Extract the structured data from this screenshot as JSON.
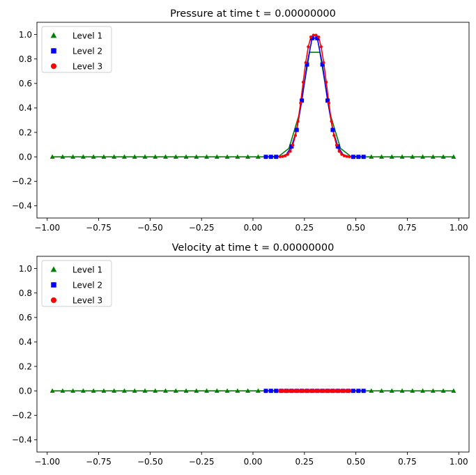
{
  "chart_data": [
    {
      "type": "line",
      "title": "Pressure at time t =      0.00000000",
      "xlim": [
        -1.05,
        1.05
      ],
      "ylim": [
        -0.5,
        1.1
      ],
      "xticks": [
        -1.0,
        -0.75,
        -0.5,
        -0.25,
        0.0,
        0.25,
        0.5,
        0.75,
        1.0
      ],
      "xtick_labels": [
        "−1.00",
        "−0.75",
        "−0.50",
        "−0.25",
        "0.00",
        "0.25",
        "0.50",
        "0.75",
        "1.00"
      ],
      "yticks": [
        -0.4,
        -0.2,
        0.0,
        0.2,
        0.4,
        0.6,
        0.8,
        1.0
      ],
      "ytick_labels": [
        "−0.4",
        "−0.2",
        "0.0",
        "0.2",
        "0.4",
        "0.6",
        "0.8",
        "1.0"
      ],
      "grid": false,
      "legend_position": "upper-left",
      "series": [
        {
          "name": "Level 1",
          "color": "#008000",
          "marker": "triangle",
          "x": [
            -0.975,
            -0.925,
            -0.875,
            -0.825,
            -0.775,
            -0.725,
            -0.675,
            -0.625,
            -0.575,
            -0.525,
            -0.475,
            -0.425,
            -0.375,
            -0.325,
            -0.275,
            -0.225,
            -0.175,
            -0.125,
            -0.075,
            -0.025,
            0.025,
            0.075,
            0.125,
            0.175,
            0.225,
            0.275,
            0.325,
            0.375,
            0.425,
            0.475,
            0.525,
            0.575,
            0.625,
            0.675,
            0.725,
            0.775,
            0.825,
            0.875,
            0.925,
            0.975
          ],
          "y": [
            0,
            0,
            0,
            0,
            0,
            0,
            0,
            0,
            0,
            0,
            0,
            0,
            0,
            0,
            0,
            0,
            0,
            0,
            0,
            0,
            0,
            0,
            0.004,
            0.07,
            0.35,
            0.855,
            0.855,
            0.35,
            0.07,
            0.004,
            0,
            0,
            0,
            0,
            0,
            0,
            0,
            0,
            0,
            0
          ],
          "marker_x": [
            -0.975,
            -0.925,
            -0.875,
            -0.825,
            -0.775,
            -0.725,
            -0.675,
            -0.625,
            -0.575,
            -0.525,
            -0.475,
            -0.425,
            -0.375,
            -0.325,
            -0.275,
            -0.225,
            -0.175,
            -0.125,
            -0.075,
            -0.025,
            0.025,
            0.575,
            0.625,
            0.675,
            0.725,
            0.775,
            0.825,
            0.875,
            0.925,
            0.975
          ],
          "marker_y": [
            0,
            0,
            0,
            0,
            0,
            0,
            0,
            0,
            0,
            0,
            0,
            0,
            0,
            0,
            0,
            0,
            0,
            0,
            0,
            0,
            0,
            0,
            0,
            0,
            0,
            0,
            0,
            0,
            0,
            0
          ]
        },
        {
          "name": "Level 2",
          "color": "#0000ff",
          "marker": "square",
          "x": [
            0.0625,
            0.0875,
            0.1125,
            0.1375,
            0.1625,
            0.1875,
            0.2125,
            0.2375,
            0.2625,
            0.2875,
            0.3125,
            0.3375,
            0.3625,
            0.3875,
            0.4125,
            0.4375,
            0.4625,
            0.4875,
            0.5125,
            0.5375
          ],
          "y": [
            0,
            0,
            0,
            0.003,
            0.02,
            0.085,
            0.22,
            0.46,
            0.755,
            0.97,
            0.97,
            0.755,
            0.46,
            0.22,
            0.085,
            0.02,
            0.003,
            0,
            0,
            0
          ],
          "marker_x": [
            0.0625,
            0.0875,
            0.1125,
            0.1875,
            0.2125,
            0.2375,
            0.2625,
            0.2875,
            0.3125,
            0.3375,
            0.3625,
            0.3875,
            0.4125,
            0.4875,
            0.5125,
            0.5375
          ],
          "marker_y": [
            0,
            0,
            0,
            0.085,
            0.22,
            0.46,
            0.755,
            0.97,
            0.97,
            0.755,
            0.46,
            0.22,
            0.085,
            0,
            0,
            0
          ]
        },
        {
          "name": "Level 3",
          "color": "#ff0000",
          "marker": "circle",
          "x": [
            0.13125,
            0.14375,
            0.15625,
            0.16875,
            0.18125,
            0.19375,
            0.20625,
            0.21875,
            0.23125,
            0.24375,
            0.25625,
            0.26875,
            0.28125,
            0.29375,
            0.30625,
            0.31875,
            0.33125,
            0.34375,
            0.35625,
            0.36875,
            0.38125,
            0.39375,
            0.40625,
            0.41875,
            0.43125,
            0.44375,
            0.45625,
            0.46875
          ],
          "y": [
            0.001,
            0.003,
            0.008,
            0.02,
            0.045,
            0.095,
            0.175,
            0.29,
            0.44,
            0.61,
            0.77,
            0.9,
            0.98,
            0.995,
            0.995,
            0.98,
            0.9,
            0.77,
            0.61,
            0.44,
            0.29,
            0.175,
            0.095,
            0.045,
            0.02,
            0.008,
            0.003,
            0.001
          ]
        }
      ]
    },
    {
      "type": "line",
      "title": "Velocity at time t =      0.00000000",
      "xlim": [
        -1.05,
        1.05
      ],
      "ylim": [
        -0.5,
        1.1
      ],
      "xticks": [
        -1.0,
        -0.75,
        -0.5,
        -0.25,
        0.0,
        0.25,
        0.5,
        0.75,
        1.0
      ],
      "xtick_labels": [
        "−1.00",
        "−0.75",
        "−0.50",
        "−0.25",
        "0.00",
        "0.25",
        "0.50",
        "0.75",
        "1.00"
      ],
      "yticks": [
        -0.4,
        -0.2,
        0.0,
        0.2,
        0.4,
        0.6,
        0.8,
        1.0
      ],
      "ytick_labels": [
        "−0.4",
        "−0.2",
        "0.0",
        "0.2",
        "0.4",
        "0.6",
        "0.8",
        "1.0"
      ],
      "grid": false,
      "legend_position": "upper-left",
      "series": [
        {
          "name": "Level 1",
          "color": "#008000",
          "marker": "triangle",
          "x": [
            -0.975,
            -0.925,
            -0.875,
            -0.825,
            -0.775,
            -0.725,
            -0.675,
            -0.625,
            -0.575,
            -0.525,
            -0.475,
            -0.425,
            -0.375,
            -0.325,
            -0.275,
            -0.225,
            -0.175,
            -0.125,
            -0.075,
            -0.025,
            0.025,
            0.075,
            0.125,
            0.175,
            0.225,
            0.275,
            0.325,
            0.375,
            0.425,
            0.475,
            0.525,
            0.575,
            0.625,
            0.675,
            0.725,
            0.775,
            0.825,
            0.875,
            0.925,
            0.975
          ],
          "y": [
            0,
            0,
            0,
            0,
            0,
            0,
            0,
            0,
            0,
            0,
            0,
            0,
            0,
            0,
            0,
            0,
            0,
            0,
            0,
            0,
            0,
            0,
            0,
            0,
            0,
            0,
            0,
            0,
            0,
            0,
            0,
            0,
            0,
            0,
            0,
            0,
            0,
            0,
            0,
            0
          ],
          "marker_x": [
            -0.975,
            -0.925,
            -0.875,
            -0.825,
            -0.775,
            -0.725,
            -0.675,
            -0.625,
            -0.575,
            -0.525,
            -0.475,
            -0.425,
            -0.375,
            -0.325,
            -0.275,
            -0.225,
            -0.175,
            -0.125,
            -0.075,
            -0.025,
            0.025,
            0.575,
            0.625,
            0.675,
            0.725,
            0.775,
            0.825,
            0.875,
            0.925,
            0.975
          ],
          "marker_y": [
            0,
            0,
            0,
            0,
            0,
            0,
            0,
            0,
            0,
            0,
            0,
            0,
            0,
            0,
            0,
            0,
            0,
            0,
            0,
            0,
            0,
            0,
            0,
            0,
            0,
            0,
            0,
            0,
            0,
            0
          ]
        },
        {
          "name": "Level 2",
          "color": "#0000ff",
          "marker": "square",
          "x": [
            0.0625,
            0.0875,
            0.1125,
            0.1375,
            0.1625,
            0.1875,
            0.2125,
            0.2375,
            0.2625,
            0.2875,
            0.3125,
            0.3375,
            0.3625,
            0.3875,
            0.4125,
            0.4375,
            0.4625,
            0.4875,
            0.5125,
            0.5375
          ],
          "y": [
            0,
            0,
            0,
            0,
            0,
            0,
            0,
            0,
            0,
            0,
            0,
            0,
            0,
            0,
            0,
            0,
            0,
            0,
            0,
            0
          ],
          "marker_x": [
            0.0625,
            0.0875,
            0.1125,
            0.1375,
            0.1625,
            0.1875,
            0.2125,
            0.2375,
            0.2625,
            0.2875,
            0.3125,
            0.3375,
            0.3625,
            0.3875,
            0.4125,
            0.4375,
            0.4625,
            0.4875,
            0.5125,
            0.5375
          ],
          "marker_y": [
            0,
            0,
            0,
            0,
            0,
            0,
            0,
            0,
            0,
            0,
            0,
            0,
            0,
            0,
            0,
            0,
            0,
            0,
            0,
            0
          ]
        },
        {
          "name": "Level 3",
          "color": "#ff0000",
          "marker": "circle",
          "x": [
            0.13125,
            0.14375,
            0.15625,
            0.16875,
            0.18125,
            0.19375,
            0.20625,
            0.21875,
            0.23125,
            0.24375,
            0.25625,
            0.26875,
            0.28125,
            0.29375,
            0.30625,
            0.31875,
            0.33125,
            0.34375,
            0.35625,
            0.36875,
            0.38125,
            0.39375,
            0.40625,
            0.41875,
            0.43125,
            0.44375,
            0.45625,
            0.46875
          ],
          "y": [
            0,
            0,
            0,
            0,
            0,
            0,
            0,
            0,
            0,
            0,
            0,
            0,
            0,
            0,
            0,
            0,
            0,
            0,
            0,
            0,
            0,
            0,
            0,
            0,
            0,
            0,
            0,
            0
          ]
        }
      ]
    }
  ]
}
